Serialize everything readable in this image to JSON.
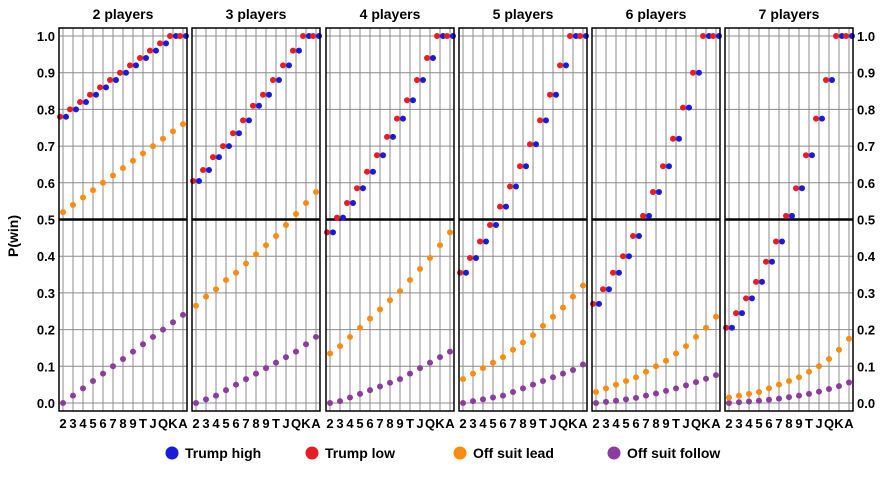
{
  "chart_data": {
    "type": "scatter",
    "ylabel": "P(win)",
    "ylim": [
      0,
      1
    ],
    "y_ticks": [
      "0.0",
      "0.1",
      "0.2",
      "0.3",
      "0.4",
      "0.5",
      "0.6",
      "0.7",
      "0.8",
      "0.9",
      "1.0"
    ],
    "categories": [
      "2",
      "3",
      "4",
      "5",
      "6",
      "7",
      "8",
      "9",
      "T",
      "J",
      "Q",
      "K",
      "A"
    ],
    "reference_line": 0.5,
    "legend_position": "bottom",
    "series_colors": {
      "Trump high": "#1a1adc",
      "Trump low": "#e81c24",
      "Off suit lead": "#fb8c10",
      "Off suit follow": "#8c3c9c"
    },
    "panels": [
      {
        "title": "2 players",
        "series": [
          {
            "name": "Trump high",
            "values": [
              0.78,
              0.8,
              0.82,
              0.84,
              0.86,
              0.88,
              0.9,
              0.92,
              0.94,
              0.96,
              0.98,
              1.0,
              1.0
            ]
          },
          {
            "name": "Trump low",
            "values": [
              0.78,
              0.8,
              0.82,
              0.84,
              0.86,
              0.88,
              0.9,
              0.92,
              0.94,
              0.96,
              0.98,
              1.0,
              1.0
            ]
          },
          {
            "name": "Off suit lead",
            "values": [
              0.52,
              0.54,
              0.56,
              0.58,
              0.6,
              0.62,
              0.64,
              0.66,
              0.68,
              0.7,
              0.72,
              0.74,
              0.76
            ]
          },
          {
            "name": "Off suit follow",
            "values": [
              0.0,
              0.02,
              0.04,
              0.06,
              0.08,
              0.1,
              0.12,
              0.14,
              0.16,
              0.18,
              0.2,
              0.22,
              0.24
            ]
          }
        ]
      },
      {
        "title": "3 players",
        "series": [
          {
            "name": "Trump high",
            "values": [
              0.605,
              0.635,
              0.67,
              0.7,
              0.735,
              0.77,
              0.81,
              0.84,
              0.88,
              0.92,
              0.96,
              1.0,
              1.0
            ]
          },
          {
            "name": "Trump low",
            "values": [
              0.605,
              0.635,
              0.67,
              0.7,
              0.735,
              0.77,
              0.81,
              0.84,
              0.88,
              0.92,
              0.96,
              1.0,
              1.0
            ]
          },
          {
            "name": "Off suit lead",
            "values": [
              0.265,
              0.29,
              0.31,
              0.335,
              0.355,
              0.38,
              0.405,
              0.43,
              0.455,
              0.485,
              0.515,
              0.545,
              0.575
            ]
          },
          {
            "name": "Off suit follow",
            "values": [
              0.0,
              0.01,
              0.02,
              0.035,
              0.05,
              0.065,
              0.08,
              0.095,
              0.11,
              0.125,
              0.14,
              0.16,
              0.18
            ]
          }
        ]
      },
      {
        "title": "4 players",
        "series": [
          {
            "name": "Trump high",
            "values": [
              0.465,
              0.505,
              0.545,
              0.585,
              0.63,
              0.675,
              0.725,
              0.775,
              0.825,
              0.88,
              0.94,
              1.0,
              1.0
            ]
          },
          {
            "name": "Trump low",
            "values": [
              0.465,
              0.505,
              0.545,
              0.585,
              0.63,
              0.675,
              0.725,
              0.775,
              0.825,
              0.88,
              0.94,
              1.0,
              1.0
            ]
          },
          {
            "name": "Off suit lead",
            "values": [
              0.135,
              0.155,
              0.18,
              0.205,
              0.23,
              0.255,
              0.28,
              0.305,
              0.335,
              0.365,
              0.395,
              0.43,
              0.465
            ]
          },
          {
            "name": "Off suit follow",
            "values": [
              0.0,
              0.005,
              0.015,
              0.025,
              0.035,
              0.045,
              0.055,
              0.065,
              0.08,
              0.095,
              0.11,
              0.125,
              0.14
            ]
          }
        ]
      },
      {
        "title": "5 players",
        "series": [
          {
            "name": "Trump high",
            "values": [
              0.355,
              0.395,
              0.44,
              0.485,
              0.535,
              0.59,
              0.645,
              0.705,
              0.77,
              0.84,
              0.92,
              1.0,
              1.0
            ]
          },
          {
            "name": "Trump low",
            "values": [
              0.355,
              0.395,
              0.44,
              0.485,
              0.535,
              0.59,
              0.645,
              0.705,
              0.77,
              0.84,
              0.92,
              1.0,
              1.0
            ]
          },
          {
            "name": "Off suit lead",
            "values": [
              0.065,
              0.08,
              0.095,
              0.11,
              0.125,
              0.145,
              0.165,
              0.185,
              0.21,
              0.235,
              0.26,
              0.29,
              0.32
            ]
          },
          {
            "name": "Off suit follow",
            "values": [
              0.0,
              0.005,
              0.01,
              0.015,
              0.02,
              0.03,
              0.04,
              0.05,
              0.06,
              0.07,
              0.08,
              0.09,
              0.105
            ]
          }
        ]
      },
      {
        "title": "6 players",
        "series": [
          {
            "name": "Trump high",
            "values": [
              0.27,
              0.31,
              0.355,
              0.4,
              0.455,
              0.51,
              0.575,
              0.645,
              0.72,
              0.805,
              0.9,
              1.0,
              1.0
            ]
          },
          {
            "name": "Trump low",
            "values": [
              0.27,
              0.31,
              0.355,
              0.4,
              0.455,
              0.51,
              0.575,
              0.645,
              0.72,
              0.805,
              0.9,
              1.0,
              1.0
            ]
          },
          {
            "name": "Off suit lead",
            "values": [
              0.03,
              0.04,
              0.05,
              0.06,
              0.07,
              0.085,
              0.1,
              0.115,
              0.135,
              0.155,
              0.18,
              0.205,
              0.235
            ]
          },
          {
            "name": "Off suit follow",
            "values": [
              0.0,
              0.003,
              0.006,
              0.01,
              0.014,
              0.02,
              0.026,
              0.033,
              0.04,
              0.048,
              0.057,
              0.066,
              0.076
            ]
          }
        ]
      },
      {
        "title": "7 players",
        "series": [
          {
            "name": "Trump high",
            "values": [
              0.205,
              0.245,
              0.285,
              0.33,
              0.385,
              0.44,
              0.51,
              0.585,
              0.675,
              0.775,
              0.88,
              1.0,
              1.0
            ]
          },
          {
            "name": "Trump low",
            "values": [
              0.205,
              0.245,
              0.285,
              0.33,
              0.385,
              0.44,
              0.51,
              0.585,
              0.675,
              0.775,
              0.88,
              1.0,
              1.0
            ]
          },
          {
            "name": "Off suit lead",
            "values": [
              0.015,
              0.02,
              0.025,
              0.03,
              0.04,
              0.05,
              0.06,
              0.07,
              0.085,
              0.1,
              0.12,
              0.145,
              0.175
            ]
          },
          {
            "name": "Off suit follow",
            "values": [
              0.0,
              0.002,
              0.004,
              0.006,
              0.009,
              0.012,
              0.016,
              0.02,
              0.025,
              0.031,
              0.038,
              0.046,
              0.056
            ]
          }
        ]
      }
    ]
  }
}
